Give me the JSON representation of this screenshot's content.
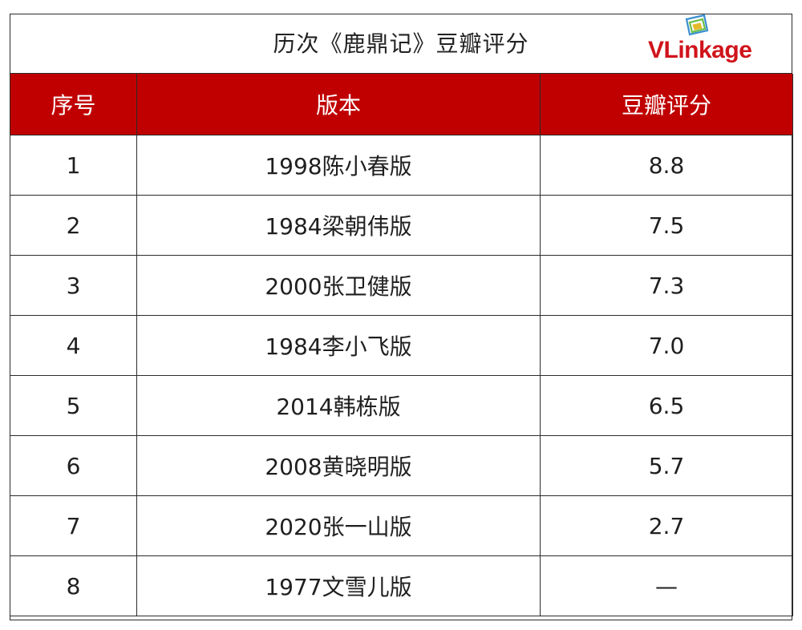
{
  "table": {
    "title": "历次《鹿鼎记》豆瓣评分",
    "headers": [
      "序号",
      "版本",
      "豆瓣评分"
    ],
    "rows": [
      {
        "index": "1",
        "version": "1998陈小春版",
        "score": "8.8"
      },
      {
        "index": "2",
        "version": "1984梁朝伟版",
        "score": "7.5"
      },
      {
        "index": "3",
        "version": "2000张卫健版",
        "score": "7.3"
      },
      {
        "index": "4",
        "version": "1984李小飞版",
        "score": "7.0"
      },
      {
        "index": "5",
        "version": "2014韩栋版",
        "score": "6.5"
      },
      {
        "index": "6",
        "version": "2008黄晓明版",
        "score": "5.7"
      },
      {
        "index": "7",
        "version": "2020张一山版",
        "score": "2.7"
      },
      {
        "index": "8",
        "version": "1977文雪儿版",
        "score": "—"
      }
    ]
  },
  "logo": {
    "text": "VLinkage",
    "brand_color": "#d0131b",
    "icon_colors": [
      "#3a8fd0",
      "#6cbf4a",
      "#e5b92a"
    ]
  },
  "colors": {
    "header_bg": "#c00000",
    "header_text": "#ffffff",
    "border": "#2b2b2b",
    "body_text": "#1f1f1f"
  }
}
